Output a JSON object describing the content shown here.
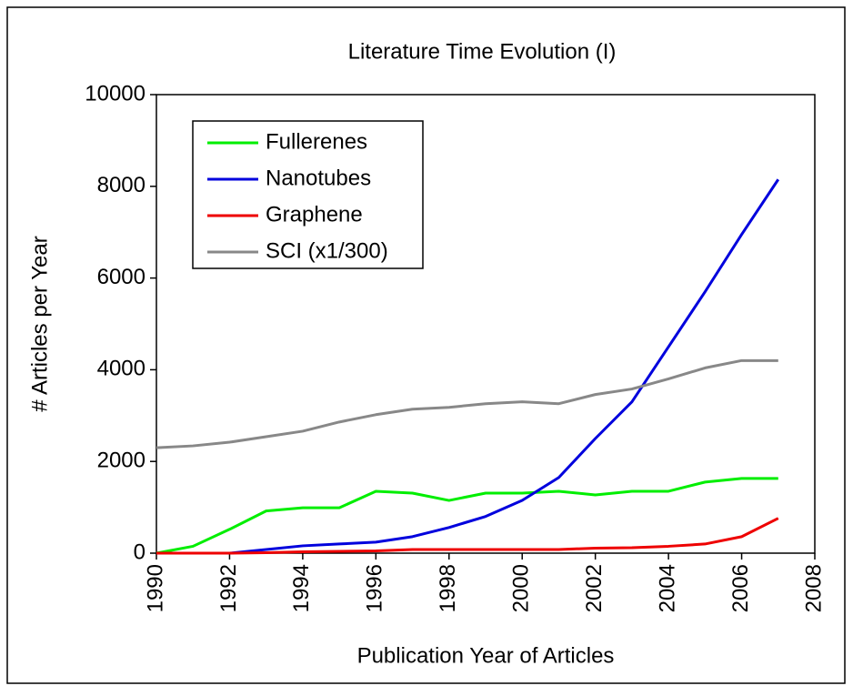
{
  "chart_data": {
    "type": "line",
    "title": "Literature Time Evolution (I)",
    "xlabel": "Publication Year of Articles",
    "ylabel": "# Articles per Year",
    "x": [
      1990,
      1991,
      1992,
      1993,
      1994,
      1995,
      1996,
      1997,
      1998,
      1999,
      2000,
      2001,
      2002,
      2003,
      2004,
      2005,
      2006,
      2007
    ],
    "series": [
      {
        "name": "Fullerenes",
        "color": "#00ee00",
        "values": [
          0,
          150,
          520,
          920,
          990,
          990,
          1350,
          1310,
          1150,
          1310,
          1310,
          1350,
          1270,
          1350,
          1350,
          1550,
          1630,
          1630
        ]
      },
      {
        "name": "Nanotubes",
        "color": "#0000dd",
        "values": [
          0,
          0,
          0,
          80,
          160,
          200,
          240,
          360,
          560,
          800,
          1150,
          1650,
          2500,
          3300,
          4500,
          5700,
          6950,
          8150
        ]
      },
      {
        "name": "Graphene",
        "color": "#ee0000",
        "values": [
          0,
          0,
          0,
          10,
          30,
          40,
          50,
          80,
          80,
          80,
          80,
          80,
          110,
          120,
          150,
          200,
          360,
          760
        ]
      },
      {
        "name": "SCI (x1/300)",
        "color": "#888888",
        "values": [
          2300,
          2340,
          2420,
          2540,
          2660,
          2860,
          3020,
          3140,
          3180,
          3260,
          3300,
          3260,
          3460,
          3580,
          3800,
          4040,
          4200,
          4200
        ]
      }
    ],
    "xlim": [
      1990,
      2008
    ],
    "xticks": [
      1990,
      1992,
      1994,
      1996,
      1998,
      2000,
      2002,
      2004,
      2006,
      2008
    ],
    "ylim": [
      0,
      10000
    ],
    "yticks": [
      0,
      2000,
      4000,
      6000,
      8000,
      10000
    ],
    "grid": false,
    "legend": "upper left"
  }
}
